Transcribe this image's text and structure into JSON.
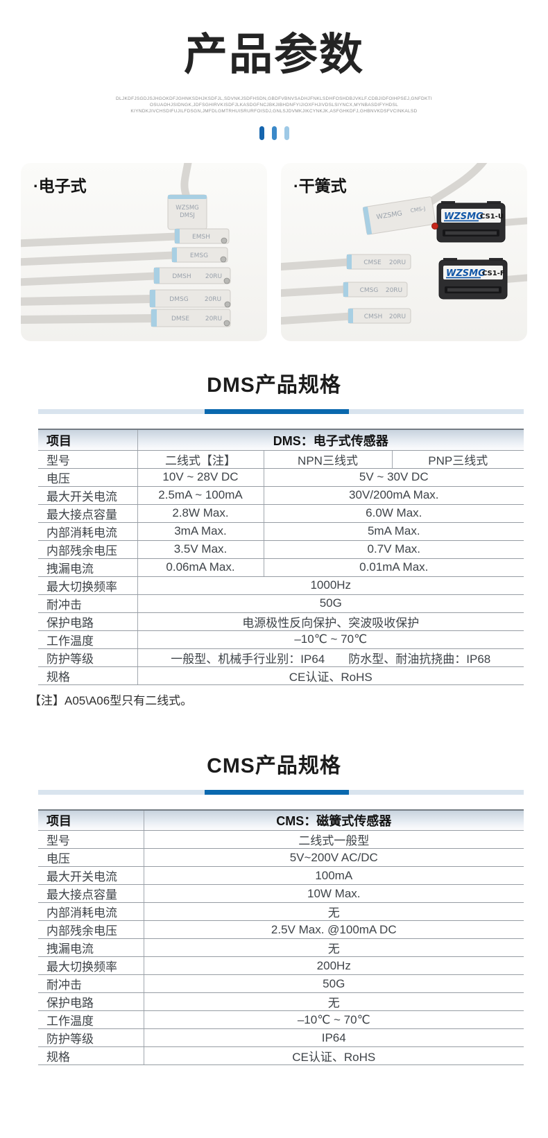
{
  "header": {
    "title": "产品参数",
    "tagline_lines": [
      "DLJKDFJSGDJSJHGOKDFJGHNKSDHJKSDFJL,SDVNKJSDFHSDN,GBDFVBNVSADHJFNKLSDHFOSHDBJVKLF.CDBJIDFOIHPSEJ,GNFDKTI",
      "OSUAOHJSIDNGK,JDFSGHIRVKISDFJLKASDGFNCJBKJIBHDNFYIJIOXFHJIVDSLSIYNCX,MYNBASDIFYHDSL",
      "KIYNDKJIVCHSDIFUJILFDSGN,JMFDLGMTRHUISRURFOISDJ,GNLSJDVMKJIKCYNKJK,ASFGHKDFJ,GHBNVKDSFVCINKALSD"
    ],
    "accent_colors": [
      "#1565ae",
      "#3b89c9",
      "#9ec9e6"
    ]
  },
  "gallery": {
    "electronic": {
      "label": "·电子式",
      "top_sensor": {
        "brand": "WZSMG",
        "model": "DMSJ"
      },
      "sensors": [
        {
          "model": "EMSH",
          "size": ""
        },
        {
          "model": "EMSG",
          "size": ""
        },
        {
          "model": "DMSH",
          "size": "20RU"
        },
        {
          "model": "DMSG",
          "size": "20RU"
        },
        {
          "model": "DMSE",
          "size": "20RU"
        }
      ]
    },
    "reed": {
      "label": "·干簧式",
      "top_sensor": {
        "brand": "WZSMG",
        "model": "CMS-J"
      },
      "sensors": [
        {
          "model": "CMSE",
          "size": "20RU"
        },
        {
          "model": "CMSG",
          "size": "20RU"
        },
        {
          "model": "CMSH",
          "size": "20RU"
        }
      ],
      "block_sensors": [
        {
          "brand": "WZSMG",
          "model": "CS1-U"
        },
        {
          "brand": "WZSMG",
          "model": "CS1-F"
        }
      ]
    }
  },
  "dms": {
    "title": "DMS产品规格",
    "header": {
      "item": "项目",
      "product": "DMS：电子式传感器"
    },
    "rows": [
      {
        "label": "型号",
        "cells": [
          {
            "t": "二线式【注】",
            "s": 1
          },
          {
            "t": "NPN三线式",
            "s": 1
          },
          {
            "t": "PNP三线式",
            "s": 1
          }
        ]
      },
      {
        "label": "电压",
        "cells": [
          {
            "t": "10V ~ 28V DC",
            "s": 1
          },
          {
            "t": "5V ~ 30V DC",
            "s": 2
          }
        ]
      },
      {
        "label": "最大开关电流",
        "cells": [
          {
            "t": "2.5mA ~ 100mA",
            "s": 1
          },
          {
            "t": "30V/200mA  Max.",
            "s": 2
          }
        ]
      },
      {
        "label": "最大接点容量",
        "cells": [
          {
            "t": "2.8W Max.",
            "s": 1
          },
          {
            "t": "6.0W Max.",
            "s": 2
          }
        ]
      },
      {
        "label": "内部消耗电流",
        "cells": [
          {
            "t": "3mA Max.",
            "s": 1
          },
          {
            "t": "5mA Max.",
            "s": 2
          }
        ]
      },
      {
        "label": "内部残余电压",
        "cells": [
          {
            "t": "3.5V Max.",
            "s": 1
          },
          {
            "t": "0.7V Max.",
            "s": 2
          }
        ]
      },
      {
        "label": "拽漏电流",
        "cells": [
          {
            "t": "0.06mA Max.",
            "s": 1
          },
          {
            "t": "0.01mA Max.",
            "s": 2
          }
        ]
      },
      {
        "label": "最大切换频率",
        "cells": [
          {
            "t": "1000Hz",
            "s": 3
          }
        ]
      },
      {
        "label": "耐冲击",
        "cells": [
          {
            "t": "50G",
            "s": 3
          }
        ]
      },
      {
        "label": "保护电路",
        "cells": [
          {
            "t": "电源极性反向保护、突波吸收保护",
            "s": 3
          }
        ]
      },
      {
        "label": "工作温度",
        "cells": [
          {
            "t": "–10℃ ~ 70℃",
            "s": 3
          }
        ]
      },
      {
        "label": "防护等级",
        "cells": [
          {
            "t": "一般型、机械手行业别：IP64　　防水型、耐油抗挠曲：IP68",
            "s": 3
          }
        ]
      },
      {
        "label": "规格",
        "cells": [
          {
            "t": "CE认证、RoHS",
            "s": 3
          }
        ]
      }
    ],
    "note": "【注】A05\\A06型只有二线式。"
  },
  "cms": {
    "title": "CMS产品规格",
    "header": {
      "item": "项目",
      "product": "CMS：磁簧式传感器"
    },
    "rows": [
      {
        "label": "型号",
        "value": "二线式一般型"
      },
      {
        "label": "电压",
        "value": "5V~200V AC/DC"
      },
      {
        "label": "最大开关电流",
        "value": "100mA"
      },
      {
        "label": "最大接点容量",
        "value": "10W  Max."
      },
      {
        "label": "内部消耗电流",
        "value": "无"
      },
      {
        "label": "内部残余电压",
        "value": "2.5V Max. @100mA DC"
      },
      {
        "label": "拽漏电流",
        "value": "无"
      },
      {
        "label": "最大切换频率",
        "value": "200Hz"
      },
      {
        "label": "耐冲击",
        "value": "50G"
      },
      {
        "label": "保护电路",
        "value": "无"
      },
      {
        "label": "工作温度",
        "value": "–10℃ ~ 70℃"
      },
      {
        "label": "防护等级",
        "value": "IP64"
      },
      {
        "label": "规格",
        "value": "CE认证、RoHS"
      }
    ]
  },
  "theme": {
    "divider_light": "#d9e4ee",
    "divider_dark": "#0a68ae",
    "table_header_tint": "#c8d3de",
    "table_line": "#969ca3",
    "led_red": "#c6271c",
    "logo_blue": "#1358a8"
  }
}
